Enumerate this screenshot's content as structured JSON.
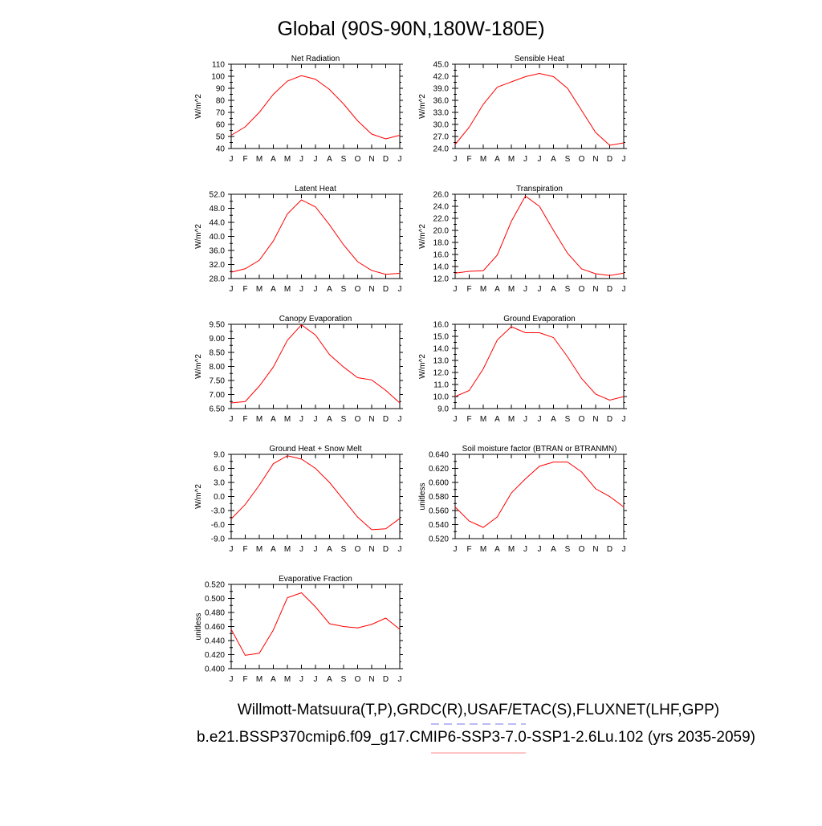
{
  "figure": {
    "title": "Global (90S-90N,180W-180E)",
    "footer": [
      "Willmott-Matsuura(T,P),GRDC(R),USAF/ETAC(S),FLUXNET(LHF,GPP)",
      "b.e21.BSSP370cmip6.f09_g17.CMIP6-SSP3-7.0-SSP1-2.6Lu.102 (yrs 2035-2059)"
    ],
    "legend_colors": {
      "dashed": "#7777ee",
      "solid": "#ff8888"
    }
  },
  "chart_data": [
    {
      "type": "line",
      "title": "Net Radiation",
      "ylabel": "W/m^2",
      "categories": [
        "J",
        "F",
        "M",
        "A",
        "M",
        "J",
        "J",
        "A",
        "S",
        "O",
        "N",
        "D",
        "J"
      ],
      "ylim": [
        40,
        110
      ],
      "yticks": [
        "40",
        "50",
        "60",
        "70",
        "80",
        "90",
        "100",
        "110"
      ],
      "color": "#ff0000",
      "values": [
        51,
        58,
        70,
        85,
        96,
        100.5,
        97.5,
        89,
        77,
        63,
        52,
        48,
        51
      ]
    },
    {
      "type": "line",
      "title": "Sensible Heat",
      "ylabel": "W/m^2",
      "categories": [
        "J",
        "F",
        "M",
        "A",
        "M",
        "J",
        "J",
        "A",
        "S",
        "O",
        "N",
        "D",
        "J"
      ],
      "ylim": [
        24,
        45
      ],
      "yticks": [
        "24.0",
        "27.0",
        "30.0",
        "33.0",
        "36.0",
        "39.0",
        "42.0",
        "45.0"
      ],
      "color": "#ff0000",
      "values": [
        25,
        29.3,
        35,
        39.3,
        40.6,
        41.9,
        42.7,
        41.9,
        39,
        33.5,
        28,
        24.8,
        25.4
      ]
    },
    {
      "type": "line",
      "title": "Latent Heat",
      "ylabel": "W/m^2",
      "categories": [
        "J",
        "F",
        "M",
        "A",
        "M",
        "J",
        "J",
        "A",
        "S",
        "O",
        "N",
        "D",
        "J"
      ],
      "ylim": [
        28,
        52
      ],
      "yticks": [
        "28.0",
        "32.0",
        "36.0",
        "40.0",
        "44.0",
        "48.0",
        "52.0"
      ],
      "color": "#ff0000",
      "values": [
        29.8,
        30.8,
        33.2,
        38.7,
        46.4,
        50.4,
        48.4,
        43.3,
        37.6,
        32.8,
        30.3,
        29.2,
        29.5
      ]
    },
    {
      "type": "line",
      "title": "Transpiration",
      "ylabel": "W/m^2",
      "categories": [
        "J",
        "F",
        "M",
        "A",
        "M",
        "J",
        "J",
        "A",
        "S",
        "O",
        "N",
        "D",
        "J"
      ],
      "ylim": [
        12,
        26
      ],
      "yticks": [
        "12.0",
        "14.0",
        "16.0",
        "18.0",
        "20.0",
        "22.0",
        "24.0",
        "26.0"
      ],
      "color": "#ff0000",
      "values": [
        12.9,
        13.2,
        13.3,
        15.9,
        21.5,
        25.7,
        24.0,
        20.0,
        16.2,
        13.6,
        12.8,
        12.5,
        12.9
      ]
    },
    {
      "type": "line",
      "title": "Canopy Evaporation",
      "ylabel": "W/m^2",
      "categories": [
        "J",
        "F",
        "M",
        "A",
        "M",
        "J",
        "J",
        "A",
        "S",
        "O",
        "N",
        "D",
        "J"
      ],
      "ylim": [
        6.5,
        9.5
      ],
      "yticks": [
        "6.50",
        "7.00",
        "7.50",
        "8.00",
        "8.50",
        "9.00",
        "9.50"
      ],
      "color": "#ff0000",
      "values": [
        6.7,
        6.75,
        7.3,
        7.98,
        8.93,
        9.48,
        9.12,
        8.42,
        7.98,
        7.6,
        7.52,
        7.15,
        6.7
      ]
    },
    {
      "type": "line",
      "title": "Ground Evaporation",
      "ylabel": "W/m^2",
      "categories": [
        "J",
        "F",
        "M",
        "A",
        "M",
        "J",
        "J",
        "A",
        "S",
        "O",
        "N",
        "D",
        "J"
      ],
      "ylim": [
        9,
        16
      ],
      "yticks": [
        "9.0",
        "10.0",
        "11.0",
        "12.0",
        "13.0",
        "14.0",
        "15.0",
        "16.0"
      ],
      "color": "#ff0000",
      "values": [
        10.0,
        10.5,
        12.3,
        14.7,
        15.8,
        15.3,
        15.3,
        14.9,
        13.3,
        11.5,
        10.2,
        9.7,
        10.0
      ]
    },
    {
      "type": "line",
      "title": "Ground Heat + Snow Melt",
      "ylabel": "W/m^2",
      "categories": [
        "J",
        "F",
        "M",
        "A",
        "M",
        "J",
        "J",
        "A",
        "S",
        "O",
        "N",
        "D",
        "J"
      ],
      "ylim": [
        -9,
        9
      ],
      "yticks": [
        "-9.0",
        "-6.0",
        "-3.0",
        "0.0",
        "3.0",
        "6.0",
        "9.0"
      ],
      "color": "#ff0000",
      "values": [
        -4.8,
        -1.7,
        2.4,
        7.0,
        8.7,
        8.0,
        6.0,
        3.0,
        -0.7,
        -4.4,
        -7.1,
        -6.9,
        -4.7
      ]
    },
    {
      "type": "line",
      "title": "Soil moisture factor (BTRAN or BTRANMN)",
      "ylabel": "unitless",
      "categories": [
        "J",
        "F",
        "M",
        "A",
        "M",
        "J",
        "J",
        "A",
        "S",
        "O",
        "N",
        "D",
        "J"
      ],
      "ylim": [
        0.52,
        0.64
      ],
      "yticks": [
        "0.520",
        "0.540",
        "0.560",
        "0.580",
        "0.600",
        "0.620",
        "0.640"
      ],
      "color": "#ff0000",
      "values": [
        0.565,
        0.545,
        0.536,
        0.551,
        0.585,
        0.605,
        0.623,
        0.629,
        0.629,
        0.615,
        0.591,
        0.58,
        0.565
      ]
    },
    {
      "type": "line",
      "title": "Evaporative Fraction",
      "ylabel": "unitless",
      "categories": [
        "J",
        "F",
        "M",
        "A",
        "M",
        "J",
        "J",
        "A",
        "S",
        "O",
        "N",
        "D",
        "J"
      ],
      "ylim": [
        0.4,
        0.52
      ],
      "yticks": [
        "0.400",
        "0.420",
        "0.440",
        "0.460",
        "0.480",
        "0.500",
        "0.520"
      ],
      "color": "#ff0000",
      "values": [
        0.456,
        0.419,
        0.422,
        0.455,
        0.501,
        0.508,
        0.488,
        0.464,
        0.46,
        0.458,
        0.463,
        0.472,
        0.456
      ]
    }
  ]
}
